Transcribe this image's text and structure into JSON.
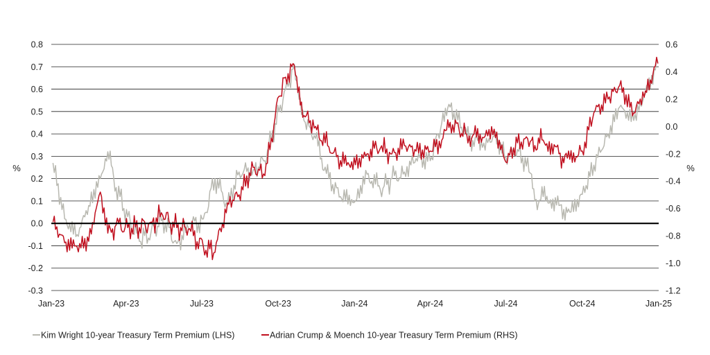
{
  "chart_data": {
    "type": "line",
    "title": "",
    "left_axis": {
      "unit": "%",
      "ylim": [
        -0.3,
        0.8
      ],
      "ticks": [
        "0.8",
        "0.7",
        "0.6",
        "0.5",
        "0.4",
        "0.3",
        "0.2",
        "0.1",
        "0.0",
        "-0.1",
        "-0.2",
        "-0.3"
      ]
    },
    "right_axis": {
      "unit": "%",
      "ylim": [
        -1.2,
        0.6
      ],
      "ticks": [
        "0.6",
        "0.4",
        "0.2",
        "0.0",
        "-0.2",
        "-0.4",
        "-0.6",
        "-0.8",
        "-1.0",
        "-1.2"
      ]
    },
    "x_axis": {
      "ticks": [
        "Jan-23",
        "Apr-23",
        "Jul-23",
        "Oct-23",
        "Jan-24",
        "Apr-24",
        "Jul-24",
        "Oct-24",
        "Jan-25"
      ]
    },
    "grid": "horizontal",
    "legend_position": "bottom",
    "colors": {
      "lhs": "#b8b8b0",
      "rhs": "#c00f1e",
      "zero_line": "#000000"
    },
    "series": [
      {
        "name": "Kim Wright 10-year Treasury Term Premium (LHS)",
        "axis": "left",
        "x": [
          "2023-01-03",
          "2023-01-17",
          "2023-02-01",
          "2023-02-15",
          "2023-03-01",
          "2023-03-10",
          "2023-03-20",
          "2023-04-03",
          "2023-04-17",
          "2023-05-01",
          "2023-05-15",
          "2023-06-01",
          "2023-06-15",
          "2023-07-03",
          "2023-07-17",
          "2023-08-01",
          "2023-08-15",
          "2023-09-01",
          "2023-09-15",
          "2023-10-02",
          "2023-10-10",
          "2023-10-19",
          "2023-11-01",
          "2023-11-15",
          "2023-12-01",
          "2023-12-15",
          "2024-01-02",
          "2024-01-16",
          "2024-02-01",
          "2024-02-15",
          "2024-03-01",
          "2024-03-15",
          "2024-04-01",
          "2024-04-15",
          "2024-04-25",
          "2024-05-15",
          "2024-06-03",
          "2024-06-17",
          "2024-07-01",
          "2024-07-15",
          "2024-08-01",
          "2024-08-05",
          "2024-08-15",
          "2024-09-03",
          "2024-09-16",
          "2024-10-01",
          "2024-10-15",
          "2024-11-01",
          "2024-11-15",
          "2024-12-02",
          "2024-12-16",
          "2024-12-31"
        ],
        "values": [
          0.27,
          0.02,
          -0.05,
          0.08,
          0.2,
          0.32,
          0.16,
          0.03,
          -0.08,
          -0.04,
          0.02,
          -0.09,
          -0.02,
          0.02,
          0.2,
          0.08,
          0.23,
          0.24,
          0.28,
          0.5,
          0.6,
          0.69,
          0.46,
          0.38,
          0.2,
          0.12,
          0.1,
          0.22,
          0.15,
          0.2,
          0.23,
          0.29,
          0.28,
          0.45,
          0.52,
          0.4,
          0.34,
          0.39,
          0.3,
          0.33,
          0.22,
          0.1,
          0.12,
          0.08,
          0.05,
          0.13,
          0.26,
          0.4,
          0.52,
          0.46,
          0.58,
          0.72
        ]
      },
      {
        "name": "Adrian Crump & Moench 10-year Treasury Term Premium (RHS)",
        "axis": "right",
        "x": [
          "2023-01-03",
          "2023-01-17",
          "2023-02-01",
          "2023-02-15",
          "2023-03-01",
          "2023-03-10",
          "2023-03-20",
          "2023-04-03",
          "2023-04-17",
          "2023-05-01",
          "2023-05-15",
          "2023-06-01",
          "2023-06-15",
          "2023-07-03",
          "2023-07-17",
          "2023-08-01",
          "2023-08-15",
          "2023-09-01",
          "2023-09-15",
          "2023-10-02",
          "2023-10-10",
          "2023-10-19",
          "2023-11-01",
          "2023-11-15",
          "2023-12-01",
          "2023-12-15",
          "2024-01-02",
          "2024-01-16",
          "2024-02-01",
          "2024-02-15",
          "2024-03-01",
          "2024-03-15",
          "2024-04-01",
          "2024-04-15",
          "2024-04-25",
          "2024-05-15",
          "2024-06-03",
          "2024-06-17",
          "2024-07-01",
          "2024-07-15",
          "2024-08-01",
          "2024-08-05",
          "2024-08-15",
          "2024-09-03",
          "2024-09-16",
          "2024-10-01",
          "2024-10-15",
          "2024-11-01",
          "2024-11-15",
          "2024-12-02",
          "2024-12-16",
          "2024-12-31"
        ],
        "values": [
          -0.7,
          -0.85,
          -0.88,
          -0.84,
          -0.48,
          -0.78,
          -0.72,
          -0.74,
          -0.74,
          -0.7,
          -0.65,
          -0.74,
          -0.75,
          -0.88,
          -0.92,
          -0.56,
          -0.5,
          -0.3,
          -0.36,
          0.22,
          0.36,
          0.46,
          0.08,
          0,
          -0.15,
          -0.25,
          -0.28,
          -0.2,
          -0.16,
          -0.2,
          -0.14,
          -0.18,
          -0.18,
          -0.1,
          0.03,
          -0.06,
          -0.08,
          -0.02,
          -0.26,
          -0.12,
          -0.1,
          -0.14,
          -0.1,
          -0.2,
          -0.24,
          -0.18,
          0.1,
          0.2,
          0.3,
          0.1,
          0.26,
          0.46
        ]
      }
    ]
  }
}
